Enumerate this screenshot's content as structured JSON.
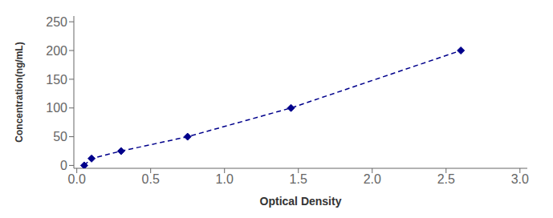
{
  "chart_data": {
    "type": "line",
    "x": [
      0.05,
      0.1,
      0.3,
      0.75,
      1.45,
      2.6
    ],
    "values": [
      0,
      12,
      25,
      50,
      100,
      200
    ],
    "color": "#00008B",
    "marker": "diamond",
    "line_style": "dashed",
    "xlabel": "Optical Density",
    "ylabel": "Concentration(ng/mL)",
    "xlim": [
      -0.02,
      3.05
    ],
    "ylim": [
      -5,
      260
    ],
    "xticks": [
      {
        "value": 0,
        "label": "0.0"
      },
      0.5,
      {
        "value": 1,
        "label": "1.0"
      },
      1.5,
      {
        "value": 2,
        "label": "2.0"
      },
      2.5,
      {
        "value": 3,
        "label": "3.0"
      }
    ],
    "yticks": [
      0,
      50,
      100,
      150,
      200,
      250
    ],
    "grid": false
  }
}
